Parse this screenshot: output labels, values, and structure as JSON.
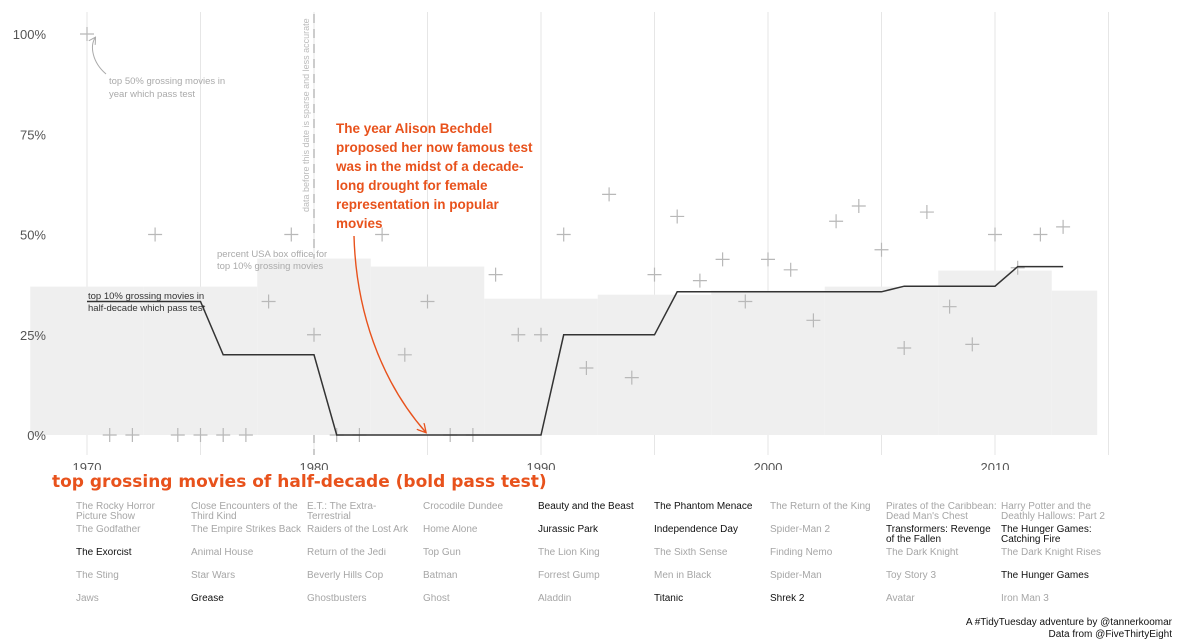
{
  "chart_data": {
    "type": "line",
    "xlim": [
      1968,
      2016
    ],
    "ylim": [
      0,
      1
    ],
    "x_ticks": [
      1970,
      1980,
      1990,
      2000,
      2010
    ],
    "y_ticks": [
      {
        "value": 0,
        "label": "0%"
      },
      {
        "value": 0.25,
        "label": "25%"
      },
      {
        "value": 0.5,
        "label": "50%"
      },
      {
        "value": 0.75,
        "label": "75%"
      },
      {
        "value": 1,
        "label": "100%"
      }
    ],
    "vertical_gridlines": [
      1970,
      1975,
      1980,
      1985,
      1990,
      1995,
      2000,
      2005,
      2010,
      2015
    ],
    "series": [
      {
        "name": "top 50% grossing movies in year which pass test",
        "style": "scatter-plus",
        "x": [
          1970,
          1971,
          1972,
          1973,
          1974,
          1975,
          1976,
          1977,
          1978,
          1979,
          1980,
          1981,
          1982,
          1983,
          1984,
          1985,
          1986,
          1987,
          1988,
          1989,
          1990,
          1991,
          1992,
          1993,
          1994,
          1995,
          1996,
          1997,
          1998,
          1999,
          2000,
          2001,
          2002,
          2003,
          2004,
          2005,
          2006,
          2007,
          2008,
          2009,
          2010,
          2011,
          2012,
          2013
        ],
        "y": [
          1,
          0,
          0,
          0.5,
          0,
          0,
          0,
          0,
          0.333,
          0.5,
          0.25,
          0,
          0,
          0.5,
          0.2,
          0.333,
          0,
          0,
          0.4,
          0.25,
          0.25,
          0.5,
          0.167,
          0.6,
          0.143,
          0.4,
          0.545,
          0.385,
          0.438,
          0.333,
          0.438,
          0.412,
          0.286,
          0.533,
          0.571,
          0.462,
          0.217,
          0.556,
          0.32,
          0.226,
          0.5,
          0.417,
          0.5,
          0.519
        ]
      },
      {
        "name": "top 10% grossing movies in half-decade which pass test",
        "style": "step-line",
        "x": [
          1970,
          1975,
          1976,
          1980,
          1981,
          1985,
          1990,
          1991,
          1995,
          1996,
          2000,
          2005,
          2006,
          2010,
          2011,
          2013
        ],
        "y": [
          0.333,
          0.333,
          0.2,
          0.2,
          0,
          0,
          0,
          0.25,
          0.25,
          0.357,
          0.357,
          0.357,
          0.371,
          0.371,
          0.42,
          0.42
        ]
      },
      {
        "name": "percent USA box office for top 10% grossing movies",
        "style": "area-bars",
        "bars": [
          {
            "x0": 1967.5,
            "x1": 1972.5,
            "y": 0.37
          },
          {
            "x0": 1972.5,
            "x1": 1977.5,
            "y": 0.37
          },
          {
            "x0": 1977.5,
            "x1": 1982.5,
            "y": 0.44
          },
          {
            "x0": 1982.5,
            "x1": 1987.5,
            "y": 0.42
          },
          {
            "x0": 1987.5,
            "x1": 1992.5,
            "y": 0.34
          },
          {
            "x0": 1992.5,
            "x1": 1997.5,
            "y": 0.35
          },
          {
            "x0": 1997.5,
            "x1": 2002.5,
            "y": 0.36
          },
          {
            "x0": 2002.5,
            "x1": 2007.5,
            "y": 0.37
          },
          {
            "x0": 2007.5,
            "x1": 2012.5,
            "y": 0.41
          },
          {
            "x0": 2012.5,
            "x1": 2014.5,
            "y": 0.36
          }
        ]
      }
    ],
    "annotations": {
      "top50_label": [
        "top 50% grossing movies in",
        "year which pass test"
      ],
      "top10_label": [
        "top 10% grossing movies in",
        "half-decade which pass test"
      ],
      "box_office_label": [
        "percent USA box office for",
        "top 10% grossing movies"
      ],
      "sparse_data_note": "data before this date is sparse and less accurate",
      "sparse_data_year": 1980,
      "callout_lines": [
        "The year Alison Bechdel",
        "proposed her now famous test",
        "was in the midst of a decade-",
        "long drought for female",
        "representation in popular",
        "movies"
      ],
      "callout_year": 1985,
      "callout_color": "#e8521c"
    }
  },
  "movies_title": "top grossing movies of half-decade (bold pass test)",
  "movie_columns": [
    [
      {
        "title": "The Rocky Horror Picture Show",
        "pass": false
      },
      {
        "title": "The Godfather",
        "pass": false
      },
      {
        "title": "The Exorcist",
        "pass": true
      },
      {
        "title": "The Sting",
        "pass": false
      },
      {
        "title": "Jaws",
        "pass": false
      }
    ],
    [
      {
        "title": "Close Encounters of the Third Kind",
        "pass": false
      },
      {
        "title": "The Empire Strikes Back",
        "pass": false
      },
      {
        "title": "Animal House",
        "pass": false
      },
      {
        "title": "Star Wars",
        "pass": false
      },
      {
        "title": "Grease",
        "pass": true
      }
    ],
    [
      {
        "title": "E.T.: The Extra-Terrestrial",
        "pass": false
      },
      {
        "title": "Raiders of the Lost Ark",
        "pass": false
      },
      {
        "title": "Return of the Jedi",
        "pass": false
      },
      {
        "title": "Beverly Hills Cop",
        "pass": false
      },
      {
        "title": "Ghostbusters",
        "pass": false
      }
    ],
    [
      {
        "title": "Crocodile Dundee",
        "pass": false
      },
      {
        "title": "Home Alone",
        "pass": false
      },
      {
        "title": "Top Gun",
        "pass": false
      },
      {
        "title": "Batman",
        "pass": false
      },
      {
        "title": "Ghost",
        "pass": false
      }
    ],
    [
      {
        "title": "Beauty and the Beast",
        "pass": true
      },
      {
        "title": "Jurassic Park",
        "pass": true
      },
      {
        "title": "The Lion King",
        "pass": false
      },
      {
        "title": "Forrest Gump",
        "pass": false
      },
      {
        "title": "Aladdin",
        "pass": false
      }
    ],
    [
      {
        "title": "The Phantom Menace",
        "pass": true
      },
      {
        "title": "Independence Day",
        "pass": true
      },
      {
        "title": "The Sixth Sense",
        "pass": false
      },
      {
        "title": "Men in Black",
        "pass": false
      },
      {
        "title": "Titanic",
        "pass": true
      }
    ],
    [
      {
        "title": "The Return of the King",
        "pass": false
      },
      {
        "title": "Spider-Man 2",
        "pass": false
      },
      {
        "title": "Finding Nemo",
        "pass": false
      },
      {
        "title": "Spider-Man",
        "pass": false
      },
      {
        "title": "Shrek 2",
        "pass": true
      }
    ],
    [
      {
        "title": "Pirates of the Caribbean: Dead Man's Chest",
        "pass": false
      },
      {
        "title": "Transformers: Revenge of the Fallen",
        "pass": true
      },
      {
        "title": "The Dark Knight",
        "pass": false
      },
      {
        "title": "Toy Story 3",
        "pass": false
      },
      {
        "title": "Avatar",
        "pass": false
      }
    ],
    [
      {
        "title": "Harry Potter and the Deathly Hallows: Part 2",
        "pass": false
      },
      {
        "title": "The Hunger Games: Catching Fire",
        "pass": true
      },
      {
        "title": "The Dark Knight Rises",
        "pass": false
      },
      {
        "title": "The Hunger Games",
        "pass": true
      },
      {
        "title": "Iron Man 3",
        "pass": false
      }
    ]
  ],
  "credits": {
    "line1": "A #TidyTuesday adventure by @tannerkoomar",
    "line2": "Data from @FiveThirtyEight"
  },
  "colors": {
    "accent": "#e8521c",
    "line": "#333333",
    "scatter": "#b8b8b8",
    "area": "#efefef",
    "gridline": "#e6e6e6",
    "pass_text": "#111111",
    "fail_text": "#a6a6a6"
  }
}
